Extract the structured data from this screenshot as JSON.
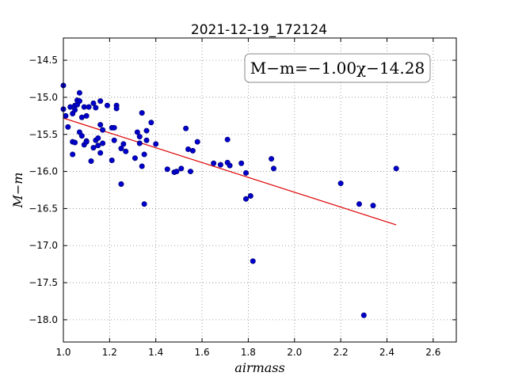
{
  "chart_data": {
    "type": "scatter",
    "title": "2021-12-19_172124",
    "xlabel": "airmass",
    "ylabel": "M−m",
    "xlim": [
      1.0,
      2.7
    ],
    "ylim": [
      -18.3,
      -14.2
    ],
    "xticks": [
      "1.0",
      "1.2",
      "1.4",
      "1.6",
      "1.8",
      "2.0",
      "2.2",
      "2.4",
      "2.6"
    ],
    "yticks": [
      "−14.5",
      "−15.0",
      "−15.5",
      "−16.0",
      "−16.5",
      "−17.0",
      "−17.5",
      "−18.0"
    ],
    "grid": true,
    "legend_box": {
      "text": "M−m=−1.00χ−14.28",
      "placement": "top-right"
    },
    "colors": {
      "points": "#0000cc",
      "fit_line": "#dd0000",
      "grid": "#888888"
    },
    "fit_line": {
      "slope": -1.0,
      "intercept": -14.28,
      "x_range": [
        1.0,
        2.44
      ]
    },
    "points": [
      [
        1.0,
        -14.84
      ],
      [
        1.0,
        -15.16
      ],
      [
        1.01,
        -15.25
      ],
      [
        1.02,
        -15.4
      ],
      [
        1.03,
        -15.13
      ],
      [
        1.04,
        -15.6
      ],
      [
        1.04,
        -15.22
      ],
      [
        1.04,
        -15.77
      ],
      [
        1.05,
        -15.17
      ],
      [
        1.05,
        -15.61
      ],
      [
        1.05,
        -15.11
      ],
      [
        1.06,
        -15.04
      ],
      [
        1.06,
        -15.1
      ],
      [
        1.07,
        -15.05
      ],
      [
        1.07,
        -15.47
      ],
      [
        1.07,
        -14.94
      ],
      [
        1.08,
        -15.27
      ],
      [
        1.08,
        -15.52
      ],
      [
        1.09,
        -15.64
      ],
      [
        1.09,
        -15.13
      ],
      [
        1.1,
        -15.25
      ],
      [
        1.1,
        -15.59
      ],
      [
        1.1,
        -15.6
      ],
      [
        1.11,
        -15.13
      ],
      [
        1.12,
        -15.86
      ],
      [
        1.13,
        -15.08
      ],
      [
        1.13,
        -15.68
      ],
      [
        1.14,
        -15.14
      ],
      [
        1.14,
        -15.58
      ],
      [
        1.15,
        -15.55
      ],
      [
        1.15,
        -15.65
      ],
      [
        1.16,
        -15.05
      ],
      [
        1.16,
        -15.37
      ],
      [
        1.16,
        -15.75
      ],
      [
        1.17,
        -15.44
      ],
      [
        1.17,
        -15.62
      ],
      [
        1.19,
        -15.11
      ],
      [
        1.21,
        -15.41
      ],
      [
        1.21,
        -15.85
      ],
      [
        1.22,
        -15.58
      ],
      [
        1.22,
        -15.41
      ],
      [
        1.23,
        -15.11
      ],
      [
        1.23,
        -15.15
      ],
      [
        1.25,
        -16.17
      ],
      [
        1.25,
        -15.69
      ],
      [
        1.26,
        -15.63
      ],
      [
        1.27,
        -15.73
      ],
      [
        1.31,
        -15.82
      ],
      [
        1.32,
        -15.47
      ],
      [
        1.33,
        -15.62
      ],
      [
        1.33,
        -15.53
      ],
      [
        1.34,
        -15.21
      ],
      [
        1.34,
        -15.93
      ],
      [
        1.35,
        -16.44
      ],
      [
        1.35,
        -15.77
      ],
      [
        1.36,
        -15.45
      ],
      [
        1.36,
        -15.58
      ],
      [
        1.38,
        -15.34
      ],
      [
        1.4,
        -15.63
      ],
      [
        1.45,
        -15.97
      ],
      [
        1.48,
        -16.01
      ],
      [
        1.49,
        -16.0
      ],
      [
        1.51,
        -15.96
      ],
      [
        1.53,
        -15.42
      ],
      [
        1.54,
        -15.7
      ],
      [
        1.55,
        -16.0
      ],
      [
        1.56,
        -15.72
      ],
      [
        1.58,
        -15.6
      ],
      [
        1.65,
        -15.89
      ],
      [
        1.68,
        -15.91
      ],
      [
        1.71,
        -15.57
      ],
      [
        1.71,
        -15.88
      ],
      [
        1.72,
        -15.92
      ],
      [
        1.77,
        -15.89
      ],
      [
        1.79,
        -16.37
      ],
      [
        1.79,
        -16.02
      ],
      [
        1.81,
        -16.33
      ],
      [
        1.82,
        -17.21
      ],
      [
        1.9,
        -15.83
      ],
      [
        1.91,
        -15.96
      ],
      [
        2.2,
        -16.16
      ],
      [
        2.28,
        -16.44
      ],
      [
        2.3,
        -17.94
      ],
      [
        2.34,
        -16.46
      ],
      [
        2.44,
        -15.96
      ]
    ]
  }
}
